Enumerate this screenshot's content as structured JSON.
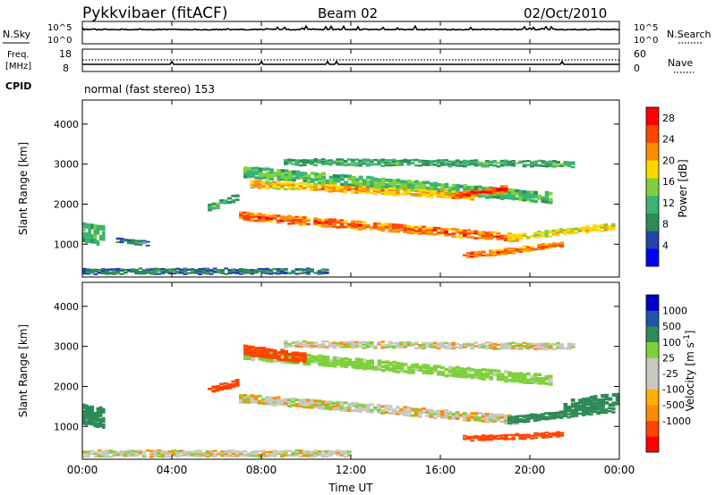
{
  "header": {
    "station": "Pykkvibaer (fitACF)",
    "beam": "Beam 02",
    "date": "02/Oct/2010"
  },
  "noise_panel": {
    "left_label": "N.Sky",
    "right_label": "N.Search",
    "left_ticks": [
      "10^5",
      "10^0"
    ],
    "right_ticks": [
      "10^5",
      "10^0"
    ]
  },
  "freq_panel": {
    "left_label_line1": "Freq.",
    "left_label_line2": "[MHz]",
    "right_label": "Nave",
    "left_ticks": [
      "18",
      "8"
    ],
    "right_ticks": [
      "60",
      "0"
    ]
  },
  "cpid": {
    "label": "CPID",
    "text": "normal (fast stereo) 153"
  },
  "colors": {
    "power_scale": [
      "#0000ff",
      "#2244aa",
      "#2e8b57",
      "#3cb371",
      "#7fd13b",
      "#ffd700",
      "#ff8c00",
      "#ff4500",
      "#ff0000"
    ],
    "velocity_scale": [
      "#ff0000",
      "#ff4500",
      "#ff8c00",
      "#ffb000",
      "#c8c8c0",
      "#c8c8c0",
      "#7fd13b",
      "#2e8b57",
      "#2255aa",
      "#0000cc"
    ]
  },
  "chart_data": [
    {
      "type": "heatmap",
      "panel": "power",
      "xlabel": "",
      "ylabel": "Slant Range [km]",
      "x_ticks": [
        "00:00",
        "04:00",
        "08:00",
        "12:00",
        "16:00",
        "20:00",
        "00:00"
      ],
      "xlim_hours": [
        0,
        24
      ],
      "ylim": [
        180,
        4600
      ],
      "y_ticks": [
        1000,
        2000,
        3000,
        4000
      ],
      "colorbar_label": "Power [dB]",
      "colorbar_ticks": [
        4,
        8,
        12,
        16,
        20,
        24,
        28
      ],
      "colorbar_range": [
        0,
        30
      ],
      "bands": [
        {
          "t0": 7.0,
          "t1": 19.5,
          "r_start": 1700,
          "r_end": 1150,
          "width": 200,
          "level": 26
        },
        {
          "t0": 19.0,
          "t1": 23.8,
          "r_start": 1150,
          "r_end": 1450,
          "width": 160,
          "level": 20
        },
        {
          "t0": 7.2,
          "t1": 21.0,
          "r_start": 2800,
          "r_end": 2150,
          "width": 280,
          "level": 14
        },
        {
          "t0": 7.5,
          "t1": 17.5,
          "r_start": 2500,
          "r_end": 2200,
          "width": 180,
          "level": 22
        },
        {
          "t0": 16.5,
          "t1": 19.0,
          "r_start": 2200,
          "r_end": 2400,
          "width": 160,
          "level": 28
        },
        {
          "t0": 17.0,
          "t1": 21.5,
          "r_start": 700,
          "r_end": 1000,
          "width": 140,
          "level": 26
        },
        {
          "t0": 9.0,
          "t1": 22.0,
          "r_start": 3050,
          "r_end": 3000,
          "width": 160,
          "level": 12
        },
        {
          "t0": 0.0,
          "t1": 1.0,
          "r_start": 1300,
          "r_end": 1200,
          "width": 500,
          "level": 14
        },
        {
          "t0": 0.0,
          "t1": 11.0,
          "r_start": 320,
          "r_end": 320,
          "width": 140,
          "level": 8
        },
        {
          "t0": 1.5,
          "t1": 3.0,
          "r_start": 1100,
          "r_end": 1000,
          "width": 120,
          "level": 8
        },
        {
          "t0": 5.6,
          "t1": 7.0,
          "r_start": 1900,
          "r_end": 2200,
          "width": 180,
          "level": 12
        }
      ]
    },
    {
      "type": "heatmap",
      "panel": "velocity",
      "xlabel": "Time UT",
      "ylabel": "Slant Range [km]",
      "x_ticks": [
        "00:00",
        "04:00",
        "08:00",
        "12:00",
        "16:00",
        "20:00",
        "00:00"
      ],
      "xlim_hours": [
        0,
        24
      ],
      "ylim": [
        180,
        4600
      ],
      "y_ticks": [
        1000,
        2000,
        3000,
        4000
      ],
      "colorbar_label": "Velocity [m s^-1]",
      "colorbar_ticks": [
        "1000",
        "500",
        "100",
        "25",
        "-25",
        "-100",
        "-500",
        "-1000"
      ],
      "bands": [
        {
          "t0": 7.0,
          "t1": 19.5,
          "r_start": 1700,
          "r_end": 1150,
          "width": 220,
          "level": 0
        },
        {
          "t0": 19.0,
          "t1": 23.8,
          "r_start": 1150,
          "r_end": 1450,
          "width": 180,
          "level": 150
        },
        {
          "t0": 7.2,
          "t1": 21.0,
          "r_start": 2800,
          "r_end": 2150,
          "width": 260,
          "level": 60
        },
        {
          "t0": 7.2,
          "t1": 10.0,
          "r_start": 2900,
          "r_end": 2700,
          "width": 260,
          "level": -300
        },
        {
          "t0": 9.0,
          "t1": 22.0,
          "r_start": 3050,
          "r_end": 3000,
          "width": 160,
          "level": 0
        },
        {
          "t0": 17.0,
          "t1": 21.5,
          "r_start": 700,
          "r_end": 800,
          "width": 130,
          "level": -150
        },
        {
          "t0": 21.5,
          "t1": 24.0,
          "r_start": 1500,
          "r_end": 1700,
          "width": 300,
          "level": 400
        },
        {
          "t0": 0.0,
          "t1": 12.0,
          "r_start": 320,
          "r_end": 320,
          "width": 160,
          "level": 0
        },
        {
          "t0": 5.6,
          "t1": 7.0,
          "r_start": 1900,
          "r_end": 2100,
          "width": 180,
          "level": -300
        },
        {
          "t0": 0.0,
          "t1": 1.0,
          "r_start": 1300,
          "r_end": 1200,
          "width": 500,
          "level": 200
        }
      ]
    }
  ]
}
